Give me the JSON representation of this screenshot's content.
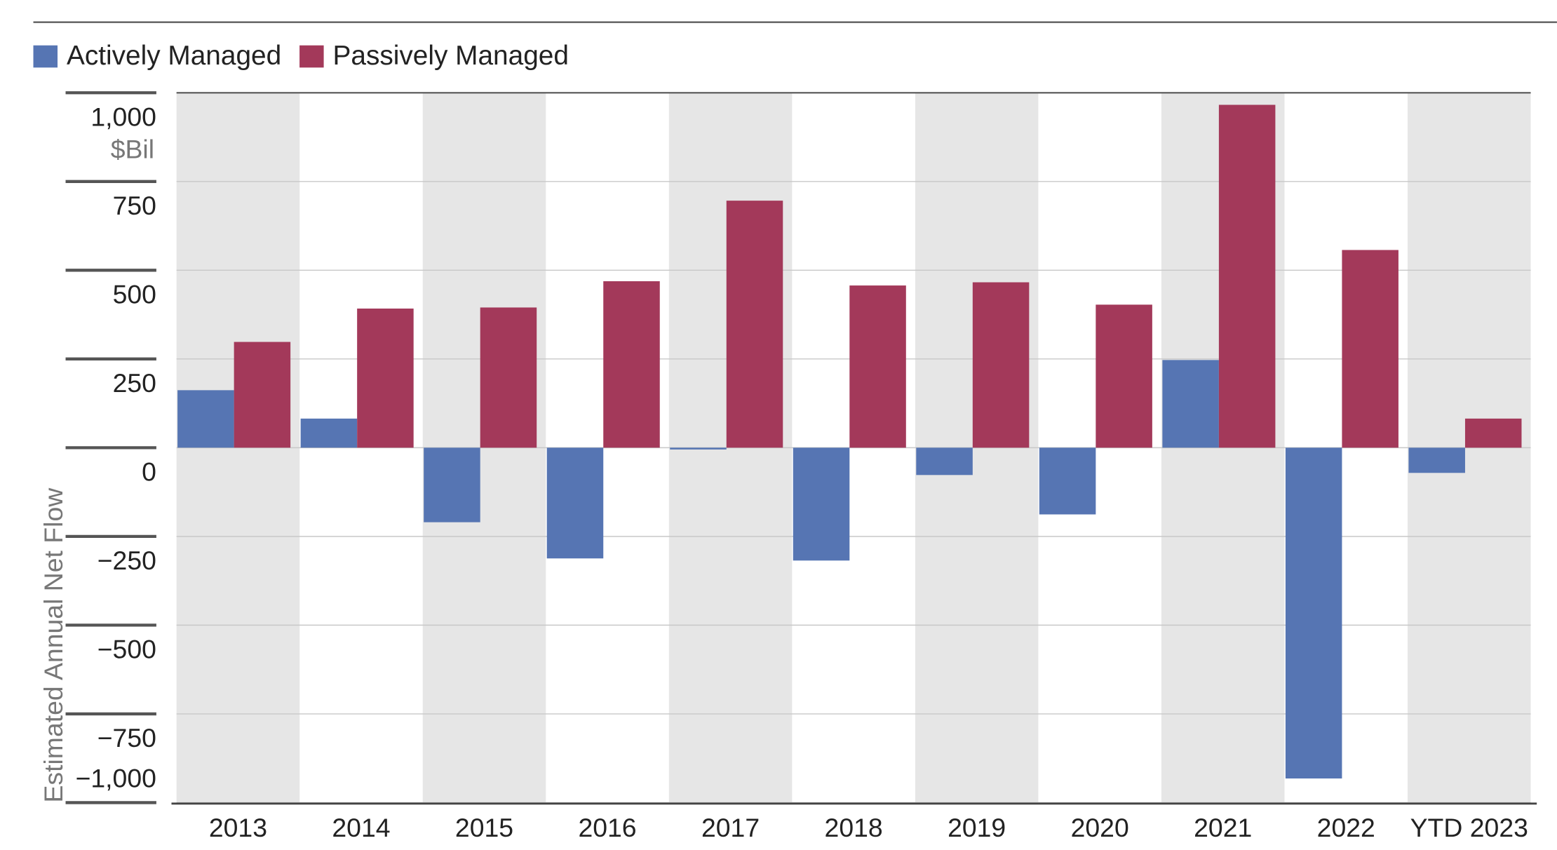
{
  "chart_data": {
    "type": "bar",
    "y_label": "Estimated Annual Net Flow",
    "y_unit": "$Bil",
    "categories": [
      "2013",
      "2014",
      "2015",
      "2016",
      "2017",
      "2018",
      "2019",
      "2020",
      "2021",
      "2022",
      "YTD 2023"
    ],
    "series": [
      {
        "name": "Actively Managed",
        "color": "#5675b3",
        "values": [
          162,
          82,
          -210,
          -312,
          -5,
          -318,
          -77,
          -188,
          247,
          -932,
          -71
        ]
      },
      {
        "name": "Passively Managed",
        "color": "#a3395a",
        "values": [
          298,
          392,
          395,
          469,
          696,
          457,
          466,
          403,
          966,
          557,
          82
        ]
      }
    ],
    "ylim": [
      -1000,
      1000
    ],
    "yticks": [
      {
        "value": 1000,
        "label": "1,000"
      },
      750,
      500,
      250,
      0,
      {
        "value": -250,
        "label": "−250"
      },
      {
        "value": -500,
        "label": "−500"
      },
      {
        "value": -750,
        "label": "−750"
      },
      {
        "value": -1000,
        "label": "−1,000"
      }
    ],
    "grid": true,
    "legend": "top-left"
  }
}
